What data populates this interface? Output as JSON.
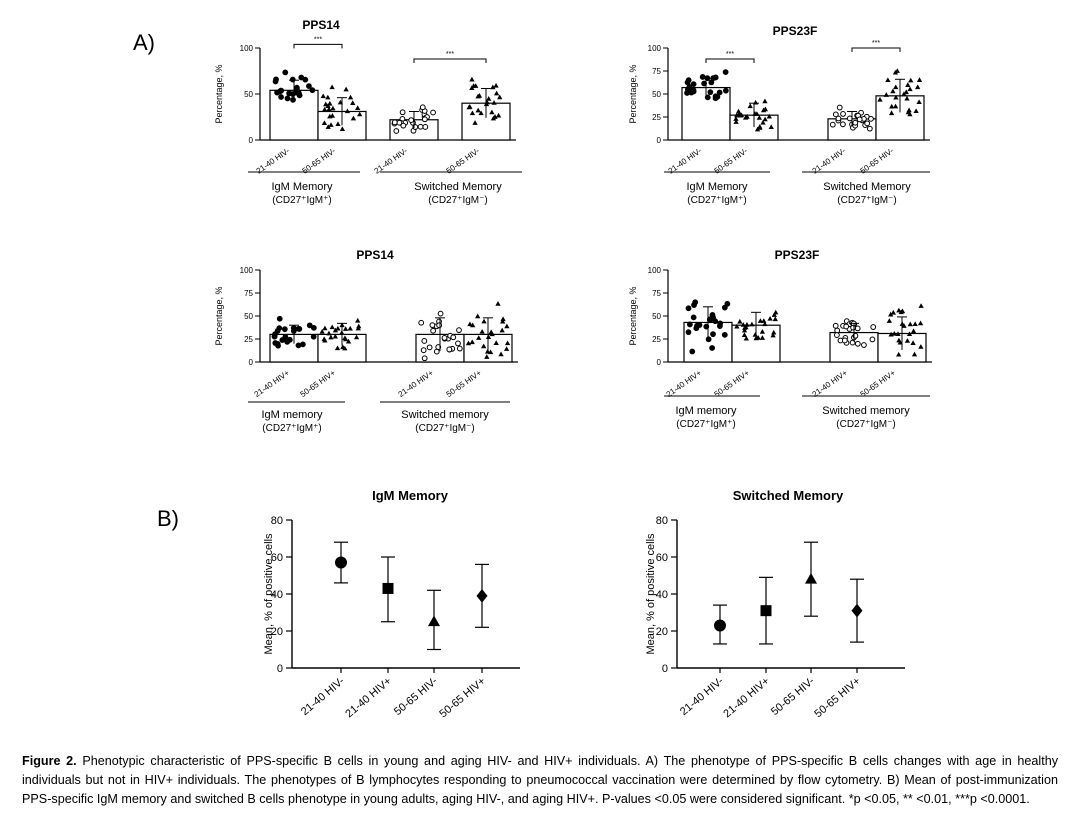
{
  "panel_labels": {
    "a": "A)",
    "b": "B)"
  },
  "caption": {
    "label": "Figure 2.",
    "text": "Phenotypic characteristic of PPS-specific B cells in young and aging HIV- and HIV+ individuals. A) The phenotype of PPS-specific B cells changes with age in healthy individuals but not in HIV+ individuals. The phenotypes of B lymphocytes responding to pneumococcal vaccination were determined by flow cytometry. B) Mean of post-immunization PPS-specific IgM memory and switched B cells phenotype in young adults, aging HIV-, and aging HIV+.  P-values <0.05 were considered significant. *p <0.05, ** <0.01, ***p <0.0001."
  },
  "chart_data": [
    {
      "type": "bar",
      "panel": "A",
      "title": "PPS14",
      "ylabel": "Percentage, %",
      "yticks": [
        0,
        50,
        100
      ],
      "ylim": [
        0,
        100
      ],
      "categories": [
        "21-40 HIV-",
        "50-65 HIV-",
        "21-40 HIV-",
        "50-65 HIV-"
      ],
      "values": [
        54,
        31,
        22,
        40
      ],
      "error": [
        11,
        15,
        9,
        16
      ],
      "markers": [
        "circle-filled",
        "triangle-filled",
        "circle-open",
        "triangle-filled"
      ],
      "groups": [
        {
          "line1": "IgM Memory",
          "line2": "(CD27⁺IgM⁺)"
        },
        {
          "line1": "Switched Memory",
          "line2": "(CD27⁺IgM⁻)"
        }
      ],
      "significance": [
        {
          "label": "***",
          "from": 0,
          "to": 1,
          "y": 104
        },
        {
          "label": "***",
          "from": 2,
          "to": 3,
          "y": 88
        }
      ]
    },
    {
      "type": "bar",
      "panel": "A",
      "title": "PPS23F",
      "ylabel": "Percentage, %",
      "yticks": [
        0,
        25,
        50,
        75,
        100
      ],
      "ylim": [
        0,
        100
      ],
      "categories": [
        "21-40 HIV-",
        "50-65 HIV-",
        "21-40 HIV-",
        "50-65 HIV-"
      ],
      "values": [
        57,
        27,
        23,
        48
      ],
      "error": [
        10,
        13,
        8,
        18
      ],
      "markers": [
        "circle-filled",
        "triangle-filled",
        "circle-open",
        "triangle-filled"
      ],
      "groups": [
        {
          "line1": "IgM Memory",
          "line2": "(CD27⁺IgM⁺)"
        },
        {
          "line1": "Switched Memory",
          "line2": "(CD27⁺IgM⁻)"
        }
      ],
      "significance": [
        {
          "label": "***",
          "from": 0,
          "to": 1,
          "y": 88
        },
        {
          "label": "***",
          "from": 2,
          "to": 3,
          "y": 100
        }
      ]
    },
    {
      "type": "bar",
      "panel": "A",
      "title": "PPS14",
      "ylabel": "Percentage, %",
      "yticks": [
        0,
        25,
        50,
        75,
        100
      ],
      "ylim": [
        0,
        100
      ],
      "categories": [
        "21-40 HIV+",
        "50-65 HIV+",
        "21-40 HIV+",
        "50-65 HIV+"
      ],
      "values": [
        30,
        30,
        30,
        30
      ],
      "error": [
        10,
        12,
        18,
        18
      ],
      "markers": [
        "circle-filled",
        "triangle-filled",
        "circle-open",
        "triangle-filled"
      ],
      "groups": [
        {
          "line1": "IgM memory",
          "line2": "(CD27⁺IgM⁺)"
        },
        {
          "line1": "Switched memory",
          "line2": "(CD27⁺IgM⁻)"
        }
      ],
      "significance": []
    },
    {
      "type": "bar",
      "panel": "A",
      "title": "PPS23F",
      "ylabel": "Percentage, %",
      "yticks": [
        0,
        25,
        50,
        75,
        100
      ],
      "ylim": [
        0,
        100
      ],
      "categories": [
        "21-40 HIV+",
        "50-65 HIV+",
        "21-40 HIV+",
        "50-65 HIV+"
      ],
      "values": [
        43,
        40,
        32,
        31
      ],
      "error": [
        17,
        14,
        10,
        18
      ],
      "markers": [
        "circle-filled",
        "triangle-filled",
        "circle-open",
        "triangle-filled"
      ],
      "groups": [
        {
          "line1": "IgM memory",
          "line2": "(CD27⁺IgM⁺)"
        },
        {
          "line1": "Switched memory",
          "line2": "(CD27⁺IgM⁻)"
        }
      ],
      "significance": []
    },
    {
      "type": "scatter",
      "panel": "B",
      "title": "IgM Memory",
      "ylabel": "Mean, % of positive cells",
      "yticks": [
        0,
        20,
        40,
        60,
        80
      ],
      "ylim": [
        0,
        80
      ],
      "categories": [
        "21-40 HIV-",
        "21-40 HIV+",
        "50-65 HIV-",
        "50-65 HIV+"
      ],
      "values": [
        57,
        43,
        25,
        39
      ],
      "lower": [
        46,
        25,
        10,
        22
      ],
      "upper": [
        68,
        60,
        42,
        56
      ],
      "markers": [
        "circle",
        "square",
        "triangle",
        "diamond"
      ]
    },
    {
      "type": "scatter",
      "panel": "B",
      "title": "Switched Memory",
      "ylabel": "Mean, % of positive cells",
      "yticks": [
        0,
        20,
        40,
        60,
        80
      ],
      "ylim": [
        0,
        80
      ],
      "categories": [
        "21-40 HIV-",
        "21-40 HIV+",
        "50-65 HIV-",
        "50-65 HIV+"
      ],
      "values": [
        23,
        31,
        48,
        31
      ],
      "lower": [
        13,
        13,
        28,
        14
      ],
      "upper": [
        34,
        49,
        68,
        48
      ],
      "markers": [
        "circle",
        "square",
        "triangle",
        "diamond"
      ]
    }
  ]
}
